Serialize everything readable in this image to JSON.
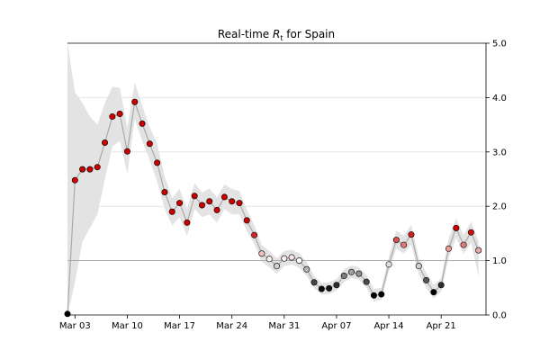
{
  "chart_data": {
    "type": "line",
    "title": "Real-time $R_t$ for Spain",
    "title_parts": {
      "before": "Real-time ",
      "symbol": "R",
      "subscript": "t",
      "after": " for Spain"
    },
    "xlabel": "",
    "ylabel": "",
    "x_tick_labels": [
      "Mar 03",
      "Mar 10",
      "Mar 17",
      "Mar 24",
      "Mar 31",
      "Apr 07",
      "Apr 14",
      "Apr 21"
    ],
    "x_tick_index": [
      1,
      8,
      15,
      22,
      29,
      36,
      43,
      50
    ],
    "y_tick_labels": [
      "0.0",
      "1.0",
      "2.0",
      "3.0",
      "4.0",
      "5.0"
    ],
    "ylim": [
      0,
      5
    ],
    "xlim": [
      0,
      56
    ],
    "y_axis_position": "right",
    "grid": "horizontal",
    "reference_line": 1.0,
    "dates": [
      "Mar 02",
      "Mar 03",
      "Mar 04",
      "Mar 05",
      "Mar 06",
      "Mar 07",
      "Mar 08",
      "Mar 09",
      "Mar 10",
      "Mar 11",
      "Mar 12",
      "Mar 13",
      "Mar 14",
      "Mar 15",
      "Mar 16",
      "Mar 17",
      "Mar 18",
      "Mar 19",
      "Mar 20",
      "Mar 21",
      "Mar 22",
      "Mar 23",
      "Mar 24",
      "Mar 25",
      "Mar 26",
      "Mar 27",
      "Mar 28",
      "Mar 29",
      "Mar 30",
      "Mar 31",
      "Apr 01",
      "Apr 02",
      "Apr 03",
      "Apr 04",
      "Apr 05",
      "Apr 06",
      "Apr 07",
      "Apr 08",
      "Apr 09",
      "Apr 10",
      "Apr 11",
      "Apr 12",
      "Apr 13",
      "Apr 14",
      "Apr 15",
      "Apr 16",
      "Apr 17",
      "Apr 18",
      "Apr 19",
      "Apr 20",
      "Apr 21",
      "Apr 22",
      "Apr 23",
      "Apr 24",
      "Apr 25",
      "Apr 26"
    ],
    "values": [
      0.02,
      2.48,
      2.68,
      2.68,
      2.72,
      3.17,
      3.65,
      3.7,
      3.01,
      3.92,
      3.52,
      3.15,
      2.8,
      2.26,
      1.9,
      2.06,
      1.7,
      2.19,
      2.02,
      2.09,
      1.93,
      2.17,
      2.09,
      2.06,
      1.74,
      1.47,
      1.13,
      1.03,
      0.9,
      1.04,
      1.06,
      1.0,
      0.84,
      0.6,
      0.48,
      0.49,
      0.55,
      0.72,
      0.79,
      0.76,
      0.61,
      0.36,
      0.38,
      0.93,
      1.38,
      1.29,
      1.48,
      0.9,
      0.64,
      0.42,
      0.55,
      1.22,
      1.6,
      1.29,
      1.52,
      1.19
    ],
    "band_low": [
      0.0,
      0.6,
      1.35,
      1.6,
      1.85,
      2.5,
      3.1,
      3.2,
      2.6,
      3.6,
      3.2,
      2.85,
      2.45,
      1.95,
      1.65,
      1.8,
      1.45,
      1.95,
      1.8,
      1.85,
      1.7,
      1.95,
      1.85,
      1.85,
      1.55,
      1.3,
      0.98,
      0.88,
      0.76,
      0.9,
      0.93,
      0.87,
      0.72,
      0.49,
      0.38,
      0.39,
      0.45,
      0.61,
      0.68,
      0.65,
      0.5,
      0.25,
      0.28,
      0.8,
      1.22,
      1.13,
      1.3,
      0.75,
      0.5,
      0.3,
      0.43,
      1.05,
      1.42,
      1.12,
      1.33,
      0.7
    ],
    "band_high": [
      5.0,
      4.1,
      3.9,
      3.65,
      3.5,
      3.9,
      4.2,
      4.18,
      3.45,
      4.28,
      3.85,
      3.45,
      3.15,
      2.55,
      2.15,
      2.32,
      1.95,
      2.43,
      2.25,
      2.33,
      2.16,
      2.4,
      2.32,
      2.28,
      1.94,
      1.65,
      1.28,
      1.18,
      1.04,
      1.18,
      1.2,
      1.14,
      0.97,
      0.72,
      0.59,
      0.6,
      0.66,
      0.84,
      0.91,
      0.88,
      0.73,
      0.48,
      0.5,
      1.07,
      1.55,
      1.46,
      1.66,
      1.05,
      0.78,
      0.55,
      0.68,
      1.4,
      1.78,
      1.47,
      1.72,
      1.35
    ],
    "colors": {
      "line": "#aaaaaa",
      "band": "#e3e3e3",
      "grid": "#e6e6e6",
      "reference": "#9a9a9a",
      "point_edge": "#000000",
      "point_high": "#cc0000",
      "point_mid": "#ffffff",
      "point_low": "#000000"
    }
  }
}
